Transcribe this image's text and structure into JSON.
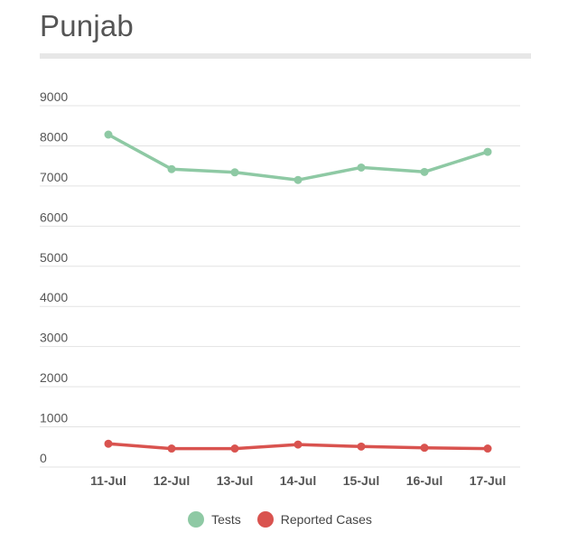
{
  "title": "Punjab",
  "colors": {
    "tests": "#8ec9a4",
    "cases": "#d9534f",
    "grid": "#e3e3e3",
    "text": "#555555"
  },
  "chart_data": {
    "type": "line",
    "title": "Punjab",
    "xlabel": "",
    "ylabel": "",
    "categories": [
      "11-Jul",
      "12-Jul",
      "13-Jul",
      "14-Jul",
      "15-Jul",
      "16-Jul",
      "17-Jul"
    ],
    "y_ticks": [
      "9000",
      "8000",
      "7000",
      "6000",
      "5000",
      "4000",
      "3000",
      "2000",
      "1000",
      "0"
    ],
    "ylim": [
      0,
      9000
    ],
    "grid": true,
    "legend_position": "bottom",
    "series": [
      {
        "name": "Tests",
        "color": "#8ec9a4",
        "values": [
          8280,
          7420,
          7340,
          7150,
          7460,
          7350,
          7850
        ]
      },
      {
        "name": "Reported Cases",
        "color": "#d9534f",
        "values": [
          580,
          460,
          460,
          560,
          510,
          480,
          460
        ]
      }
    ]
  }
}
